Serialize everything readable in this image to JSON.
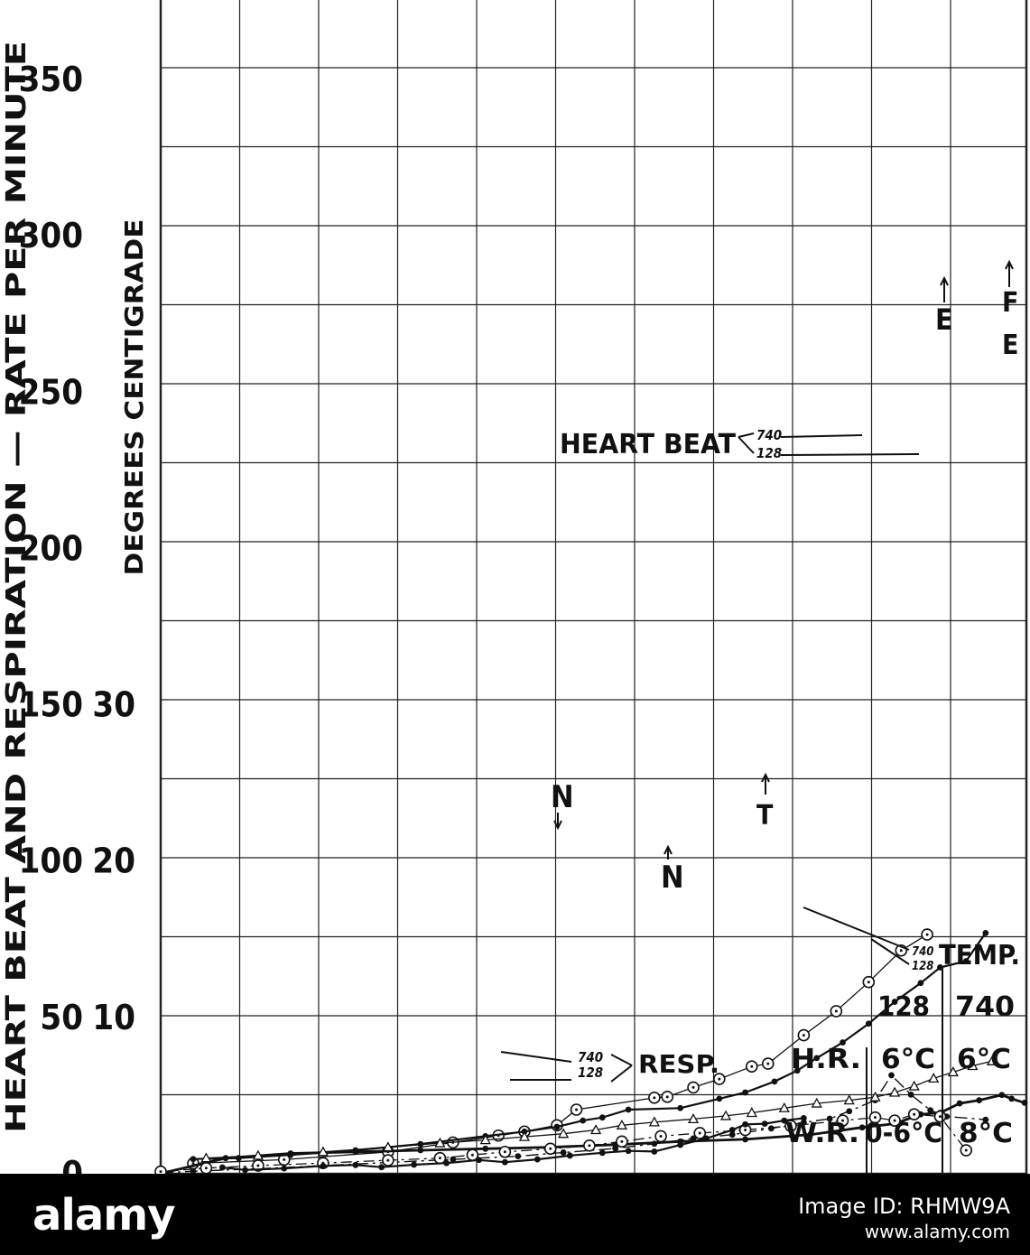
{
  "chart_data": {
    "type": "line",
    "ylabel_outer": "HEART BEAT AND RESPIRATION  —  RATE PER MINUTE",
    "ylabel_inner": "DEGREES CENTIGRADE",
    "y_ticks_rate": [
      "350",
      "300",
      "250",
      "200",
      "150",
      "100",
      "50",
      "0"
    ],
    "y_ticks_temp": [
      "30",
      "20",
      "10"
    ],
    "ylim_rate": [
      0,
      350
    ],
    "ylim_temp": [
      0,
      40
    ],
    "grid": true,
    "series": [
      {
        "name": "740",
        "group": "HEART BEAT",
        "style": "open-circle-thin",
        "points": [
          [
            0.5,
            3.3
          ],
          [
            1.9,
            4.5
          ],
          [
            3.5,
            7.0
          ],
          [
            4.5,
            10.0
          ],
          [
            5.2,
            12.2
          ],
          [
            5.6,
            13.5
          ],
          [
            6.1,
            15.5
          ],
          [
            6.4,
            20.5
          ],
          [
            7.6,
            24.3
          ],
          [
            7.8,
            24.6
          ],
          [
            8.2,
            27.6
          ],
          [
            8.6,
            30.3
          ],
          [
            9.1,
            34.3
          ],
          [
            9.35,
            35.2
          ],
          [
            9.9,
            44.3
          ],
          [
            10.4,
            52.0
          ],
          [
            10.9,
            61.3
          ],
          [
            11.4,
            71.4
          ],
          [
            11.8,
            76.5
          ]
        ]
      },
      {
        "name": "128",
        "group": "HEART BEAT",
        "style": "solid-dot",
        "points": [
          [
            0.5,
            4.7
          ],
          [
            1.2,
            5.0
          ],
          [
            2.0,
            6.0
          ],
          [
            3.0,
            7.5
          ],
          [
            4.0,
            9.5
          ],
          [
            5.0,
            12.0
          ],
          [
            5.6,
            13.5
          ],
          [
            6.1,
            15.0
          ],
          [
            6.5,
            17.0
          ],
          [
            6.8,
            18.0
          ],
          [
            7.2,
            20.5
          ],
          [
            8.0,
            21.0
          ],
          [
            8.6,
            24.0
          ],
          [
            9.0,
            26.0
          ],
          [
            9.45,
            29.5
          ],
          [
            9.8,
            33.0
          ],
          [
            10.1,
            37.0
          ],
          [
            10.5,
            42.0
          ],
          [
            10.9,
            48.0
          ],
          [
            11.3,
            55.0
          ],
          [
            11.7,
            61.0
          ],
          [
            12.0,
            66.0
          ],
          [
            12.4,
            68.0
          ],
          [
            12.7,
            77.0
          ]
        ]
      },
      {
        "name": "740",
        "group": "TEMP.",
        "style": "dash-dot-solid",
        "points": [
          [
            0,
            0.3
          ],
          [
            0.5,
            0.8
          ],
          [
            1.5,
            1.6
          ],
          [
            2.5,
            2.6
          ],
          [
            3.5,
            3.6
          ],
          [
            4.5,
            4.6
          ],
          [
            5.5,
            5.6
          ],
          [
            6.2,
            6.8
          ],
          [
            7.0,
            8.1
          ],
          [
            7.6,
            9.6
          ],
          [
            8.2,
            11.3
          ],
          [
            8.8,
            12.5
          ],
          [
            9.4,
            14.5
          ],
          [
            9.9,
            16.4
          ],
          [
            10.3,
            17.6
          ],
          [
            10.6,
            20.0
          ],
          [
            11.0,
            23.5
          ],
          [
            11.25,
            31.5
          ],
          [
            11.55,
            25.3
          ],
          [
            11.85,
            20.3
          ],
          [
            12.1,
            18.3
          ],
          [
            12.7,
            17.3
          ]
        ]
      },
      {
        "name": "128",
        "group": "TEMP.",
        "style": "solid-dense-dot",
        "points": [
          [
            0,
            0.1
          ],
          [
            1.0,
            5.0
          ],
          [
            2.0,
            6.5
          ],
          [
            3.0,
            7.0
          ],
          [
            4.0,
            7.5
          ],
          [
            5.0,
            8.0
          ],
          [
            6.0,
            8.5
          ],
          [
            7.0,
            9.3
          ],
          [
            8.0,
            10.3
          ],
          [
            9.0,
            11.0
          ],
          [
            10.0,
            12.5
          ],
          [
            10.8,
            14.8
          ],
          [
            11.3,
            16.0
          ],
          [
            11.7,
            19.0
          ],
          [
            12.0,
            19.5
          ],
          [
            12.3,
            22.5
          ],
          [
            12.6,
            23.5
          ],
          [
            12.95,
            25.2
          ],
          [
            13.1,
            24.0
          ],
          [
            13.3,
            22.7
          ]
        ]
      },
      {
        "name": "740",
        "group": "RESP.",
        "style": "open-circle-dashdot",
        "points": [
          [
            0.0,
            0.7
          ],
          [
            0.7,
            1.8
          ],
          [
            1.5,
            2.6
          ],
          [
            2.5,
            3.4
          ],
          [
            3.5,
            4.3
          ],
          [
            4.3,
            5.0
          ],
          [
            4.8,
            6.0
          ],
          [
            5.3,
            7.0
          ],
          [
            6.0,
            8.0
          ],
          [
            6.6,
            9.0
          ],
          [
            7.1,
            10.3
          ],
          [
            7.7,
            12.0
          ],
          [
            8.3,
            13.0
          ],
          [
            9.0,
            14.0
          ],
          [
            9.7,
            15.3
          ],
          [
            10.5,
            17.0
          ],
          [
            11.0,
            18.0
          ],
          [
            11.3,
            17.0
          ],
          [
            11.6,
            19.0
          ],
          [
            12.0,
            18.3
          ],
          [
            12.4,
            7.5
          ]
        ]
      },
      {
        "name": "128",
        "group": "RESP.",
        "style": "solid-dot",
        "points": [
          [
            0.95,
            2.0
          ],
          [
            1.3,
            1.2
          ],
          [
            1.9,
            1.7
          ],
          [
            2.5,
            2.5
          ],
          [
            3.0,
            2.8
          ],
          [
            3.4,
            2.1
          ],
          [
            3.9,
            2.9
          ],
          [
            4.4,
            3.4
          ],
          [
            4.9,
            4.4
          ],
          [
            5.3,
            3.7
          ],
          [
            5.8,
            4.6
          ],
          [
            6.3,
            5.8
          ],
          [
            6.8,
            6.7
          ],
          [
            7.2,
            7.3
          ],
          [
            7.6,
            7.1
          ],
          [
            8.0,
            9.2
          ],
          [
            8.4,
            11.3
          ],
          [
            8.8,
            14.0
          ],
          [
            9.0,
            15.8
          ],
          [
            9.3,
            16.0
          ],
          [
            9.6,
            17.0
          ],
          [
            9.9,
            17.8
          ]
        ]
      },
      {
        "name": "128",
        "group": "extra",
        "style": "open-triangle",
        "points": [
          [
            0.7,
            5.0
          ],
          [
            1.5,
            5.8
          ],
          [
            2.5,
            7.0
          ],
          [
            3.5,
            8.5
          ],
          [
            4.3,
            9.8
          ],
          [
            5.0,
            10.8
          ],
          [
            5.6,
            11.8
          ],
          [
            6.2,
            12.8
          ],
          [
            6.7,
            14.0
          ],
          [
            7.1,
            15.5
          ],
          [
            7.6,
            16.5
          ],
          [
            8.2,
            17.5
          ],
          [
            8.7,
            18.5
          ],
          [
            9.1,
            19.5
          ],
          [
            9.6,
            21.0
          ],
          [
            10.1,
            22.5
          ],
          [
            10.6,
            23.5
          ],
          [
            11.0,
            24.5
          ],
          [
            11.3,
            26.0
          ],
          [
            11.6,
            28.0
          ],
          [
            11.9,
            30.5
          ],
          [
            12.2,
            32.5
          ],
          [
            12.5,
            34.5
          ],
          [
            12.8,
            36.0
          ]
        ]
      }
    ],
    "labels": {
      "heart_beat": "HEART BEAT",
      "hb_740": "740",
      "hb_128": "128",
      "resp": "RESP.",
      "resp_740": "740",
      "resp_128": "128",
      "temp": "TEMP.",
      "temp_740": "740",
      "temp_128": "128",
      "marker_E1": "E",
      "marker_F": "F",
      "marker_E2": "E",
      "marker_N1": "N",
      "marker_N2": "N",
      "marker_T": "T"
    },
    "legend_table": {
      "col_headers": [
        "128",
        "740"
      ],
      "rows": [
        {
          "label": "H.R.",
          "v128": "6°C",
          "v740": "6°C"
        },
        {
          "label": "W.R.",
          "v128": "0-6°C",
          "v740": "8°C"
        }
      ]
    }
  },
  "watermark": {
    "logo": "alamy",
    "image_id": "Image ID: RHMW9A",
    "url": "www.alamy.com"
  }
}
